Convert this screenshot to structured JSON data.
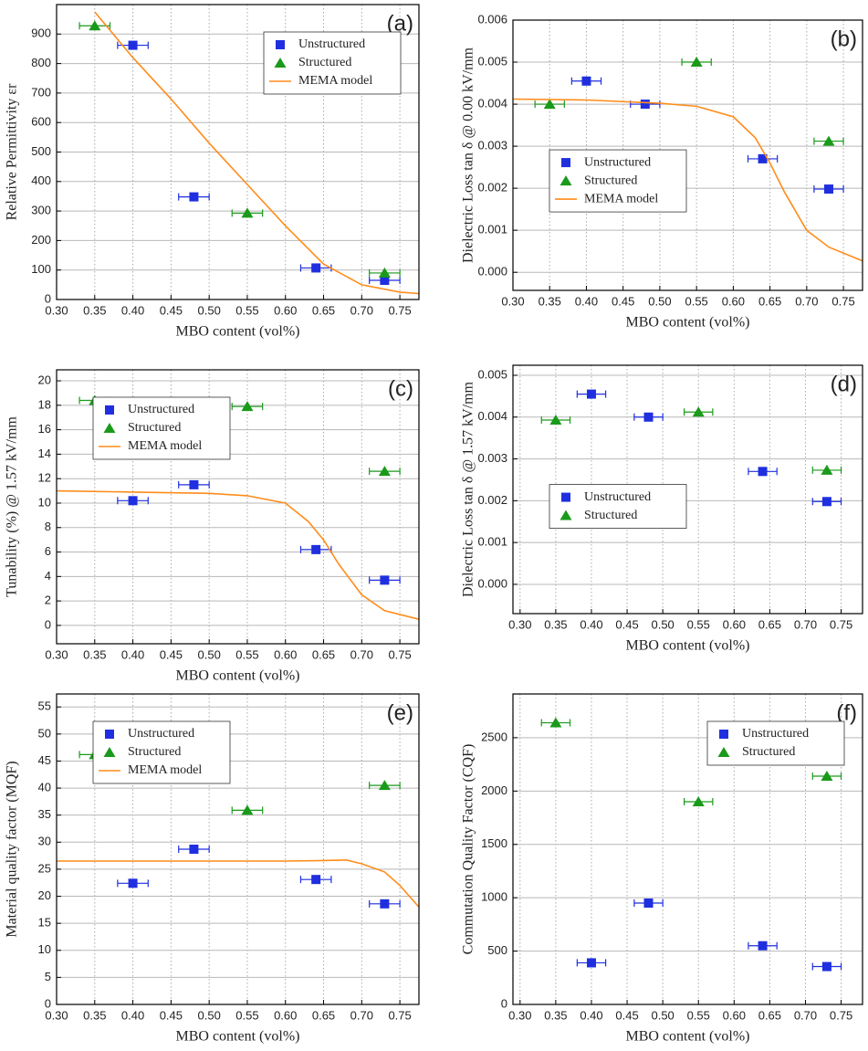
{
  "chart_data": [
    {
      "type": "scatter",
      "panel_label": "(a)",
      "xlabel": "MBO content (vol%)",
      "ylabel": "Relative Permittivity εr",
      "xlim": [
        0.3,
        0.775
      ],
      "ylim": [
        0,
        1000
      ],
      "legend": "upper right",
      "grid": true,
      "xticks": [
        {
          "value": 0.3,
          "label": "0.30"
        },
        0.35,
        {
          "value": 0.4,
          "label": "0.40"
        },
        0.45,
        {
          "value": 0.5,
          "label": "0.50"
        },
        0.55,
        {
          "value": 0.6,
          "label": "0.60"
        },
        0.65,
        {
          "value": 0.7,
          "label": "0.70"
        },
        0.75
      ],
      "yticks": [
        0,
        100,
        200,
        300,
        400,
        500,
        600,
        700,
        800,
        900
      ],
      "series": [
        {
          "name": "Unstructured",
          "color": "#1f2fe0",
          "marker": "square",
          "x": [
            0.4,
            0.48,
            0.64,
            0.73
          ],
          "values": [
            862,
            348,
            107,
            65
          ],
          "xerr": [
            0.02,
            0.02,
            0.02,
            0.02
          ]
        },
        {
          "name": "Structured",
          "color": "#1a9a1a",
          "marker": "triangle",
          "x": [
            0.35,
            0.55,
            0.73
          ],
          "values": [
            928,
            293,
            90
          ],
          "xerr": [
            0.02,
            0.02,
            0.02
          ]
        },
        {
          "name": "MEMA model",
          "color": "#ff8c1a",
          "marker": "line",
          "x": [
            0.35,
            0.4,
            0.45,
            0.5,
            0.55,
            0.6,
            0.65,
            0.7,
            0.75,
            0.775
          ],
          "values": [
            975,
            820,
            680,
            530,
            390,
            250,
            120,
            50,
            25,
            20
          ]
        }
      ]
    },
    {
      "type": "scatter",
      "panel_label": "(b)",
      "xlabel": "MBO content (vol%)",
      "ylabel": "Dielectric Loss tan δ  @ 0.00 kV/mm",
      "xlim": [
        0.3,
        0.776
      ],
      "ylim": [
        -0.00043,
        0.006
      ],
      "legend": "center left",
      "grid": true,
      "xticks": [
        {
          "value": 0.3,
          "label": "0.30"
        },
        0.35,
        {
          "value": 0.4,
          "label": "0.40"
        },
        0.45,
        {
          "value": 0.5,
          "label": "0.50"
        },
        0.55,
        {
          "value": 0.6,
          "label": "0.60"
        },
        0.65,
        {
          "value": 0.7,
          "label": "0.70"
        },
        0.75
      ],
      "yticks": [
        {
          "value": 0,
          "label": "0.000"
        },
        0.001,
        0.002,
        0.003,
        0.004,
        0.005,
        0.006
      ],
      "series": [
        {
          "name": "Unstructured",
          "color": "#1f2fe0",
          "marker": "square",
          "x": [
            0.4,
            0.48,
            0.64,
            0.73
          ],
          "values": [
            0.00455,
            0.004,
            0.0027,
            0.00198
          ],
          "xerr": [
            0.02,
            0.02,
            0.02,
            0.02
          ]
        },
        {
          "name": "Structured",
          "color": "#1a9a1a",
          "marker": "triangle",
          "x": [
            0.35,
            0.55,
            0.73
          ],
          "values": [
            0.004,
            0.005,
            0.00312
          ],
          "xerr": [
            0.02,
            0.02,
            0.02
          ]
        },
        {
          "name": "MEMA model",
          "color": "#ff8c1a",
          "marker": "line",
          "x": [
            0.3,
            0.4,
            0.5,
            0.55,
            0.6,
            0.63,
            0.65,
            0.67,
            0.7,
            0.73,
            0.776
          ],
          "values": [
            0.00412,
            0.0041,
            0.00402,
            0.00395,
            0.0037,
            0.0032,
            0.0026,
            0.0019,
            0.001,
            0.0006,
            0.00027
          ]
        }
      ]
    },
    {
      "type": "scatter",
      "panel_label": "(c)",
      "xlabel": "MBO content (vol%)",
      "ylabel": "Tunability (%) @ 1.57 kV/mm",
      "xlim": [
        0.3,
        0.775
      ],
      "ylim": [
        -1.5,
        20.9
      ],
      "legend": "upper left",
      "grid": true,
      "xticks": [
        {
          "value": 0.3,
          "label": "0.30"
        },
        0.35,
        {
          "value": 0.4,
          "label": "0.40"
        },
        0.45,
        {
          "value": 0.5,
          "label": "0.50"
        },
        0.55,
        {
          "value": 0.6,
          "label": "0.60"
        },
        0.65,
        {
          "value": 0.7,
          "label": "0.70"
        },
        0.75
      ],
      "yticks": [
        0,
        2,
        4,
        6,
        8,
        10,
        12,
        14,
        16,
        18,
        20
      ],
      "series": [
        {
          "name": "Unstructured",
          "color": "#1f2fe0",
          "marker": "square",
          "x": [
            0.4,
            0.48,
            0.64,
            0.73
          ],
          "values": [
            10.2,
            11.5,
            6.2,
            3.7
          ],
          "xerr": [
            0.02,
            0.02,
            0.02,
            0.02
          ]
        },
        {
          "name": "Structured",
          "color": "#1a9a1a",
          "marker": "triangle",
          "x": [
            0.35,
            0.55,
            0.73
          ],
          "values": [
            18.4,
            17.9,
            12.6
          ],
          "xerr": [
            0.02,
            0.02,
            0.02
          ]
        },
        {
          "name": "MEMA model",
          "color": "#ff8c1a",
          "marker": "line",
          "x": [
            0.3,
            0.4,
            0.5,
            0.55,
            0.6,
            0.63,
            0.65,
            0.67,
            0.7,
            0.73,
            0.775
          ],
          "values": [
            11,
            10.9,
            10.8,
            10.6,
            10,
            8.5,
            7,
            5,
            2.5,
            1.2,
            0.5
          ]
        }
      ]
    },
    {
      "type": "scatter",
      "panel_label": "(d)",
      "xlabel": "MBO content (vol%)",
      "ylabel": "Dielectric Loss tan δ  @ 1.57 kV/mm",
      "xlim": [
        0.29,
        0.78
      ],
      "ylim": [
        -0.0007,
        0.00524
      ],
      "legend": "center left",
      "grid": true,
      "xticks": [
        {
          "value": 0.3,
          "label": "0.30"
        },
        0.35,
        {
          "value": 0.4,
          "label": "0.40"
        },
        0.45,
        {
          "value": 0.5,
          "label": "0.50"
        },
        0.55,
        {
          "value": 0.6,
          "label": "0.60"
        },
        0.65,
        {
          "value": 0.7,
          "label": "0.70"
        },
        0.75
      ],
      "yticks": [
        {
          "value": 0,
          "label": "0.000"
        },
        0.001,
        0.002,
        0.003,
        0.004,
        0.005
      ],
      "series": [
        {
          "name": "Unstructured",
          "color": "#1f2fe0",
          "marker": "square",
          "x": [
            0.4,
            0.48,
            0.64,
            0.73
          ],
          "values": [
            0.00455,
            0.004,
            0.0027,
            0.00198
          ],
          "xerr": [
            0.02,
            0.02,
            0.02,
            0.02
          ]
        },
        {
          "name": "Structured",
          "color": "#1a9a1a",
          "marker": "triangle",
          "x": [
            0.35,
            0.55,
            0.73
          ],
          "values": [
            0.00393,
            0.00412,
            0.00273
          ],
          "xerr": [
            0.02,
            0.02,
            0.02
          ]
        }
      ]
    },
    {
      "type": "scatter",
      "panel_label": "(e)",
      "xlabel": "MBO content (vol%)",
      "ylabel": "Material quality factor (MQF)",
      "xlim": [
        0.3,
        0.775
      ],
      "ylim": [
        0,
        57.4
      ],
      "legend": "upper left",
      "grid": true,
      "xticks": [
        {
          "value": 0.3,
          "label": "0.30"
        },
        0.35,
        {
          "value": 0.4,
          "label": "0.40"
        },
        0.45,
        {
          "value": 0.5,
          "label": "0.50"
        },
        0.55,
        {
          "value": 0.6,
          "label": "0.60"
        },
        0.65,
        {
          "value": 0.7,
          "label": "0.70"
        },
        0.75
      ],
      "yticks": [
        0,
        5,
        10,
        15,
        20,
        25,
        30,
        35,
        40,
        45,
        50,
        55
      ],
      "series": [
        {
          "name": "Unstructured",
          "color": "#1f2fe0",
          "marker": "square",
          "x": [
            0.4,
            0.48,
            0.64,
            0.73
          ],
          "values": [
            22.4,
            28.7,
            23.1,
            18.6
          ],
          "xerr": [
            0.02,
            0.02,
            0.02,
            0.02
          ]
        },
        {
          "name": "Structured",
          "color": "#1a9a1a",
          "marker": "triangle",
          "x": [
            0.35,
            0.55,
            0.73
          ],
          "values": [
            46.2,
            35.9,
            40.5
          ],
          "xerr": [
            0.02,
            0.02,
            0.02
          ]
        },
        {
          "name": "MEMA model",
          "color": "#ff8c1a",
          "marker": "line",
          "x": [
            0.3,
            0.6,
            0.65,
            0.68,
            0.7,
            0.73,
            0.75,
            0.775
          ],
          "values": [
            26.5,
            26.5,
            26.6,
            26.7,
            26,
            24.5,
            22,
            18
          ]
        }
      ]
    },
    {
      "type": "scatter",
      "panel_label": "(f)",
      "xlabel": "MBO content (vol%)",
      "ylabel": "Commutation Quality Factor (CQF)",
      "xlim": [
        0.29,
        0.78
      ],
      "ylim": [
        0,
        2910
      ],
      "legend": "upper right",
      "grid": true,
      "xticks": [
        {
          "value": 0.3,
          "label": "0.30"
        },
        0.35,
        {
          "value": 0.4,
          "label": "0.40"
        },
        0.45,
        {
          "value": 0.5,
          "label": "0.50"
        },
        0.55,
        {
          "value": 0.6,
          "label": "0.60"
        },
        0.65,
        {
          "value": 0.7,
          "label": "0.70"
        },
        0.75
      ],
      "yticks": [
        0,
        500,
        1000,
        1500,
        2000,
        2500
      ],
      "series": [
        {
          "name": "Unstructured",
          "color": "#1f2fe0",
          "marker": "square",
          "x": [
            0.4,
            0.48,
            0.64,
            0.73
          ],
          "values": [
            390,
            950,
            550,
            355
          ],
          "xerr": [
            0.02,
            0.02,
            0.02,
            0.02
          ]
        },
        {
          "name": "Structured",
          "color": "#1a9a1a",
          "marker": "triangle",
          "x": [
            0.35,
            0.55,
            0.73
          ],
          "values": [
            2640,
            1900,
            2140
          ],
          "xerr": [
            0.02,
            0.02,
            0.02
          ]
        }
      ]
    }
  ]
}
